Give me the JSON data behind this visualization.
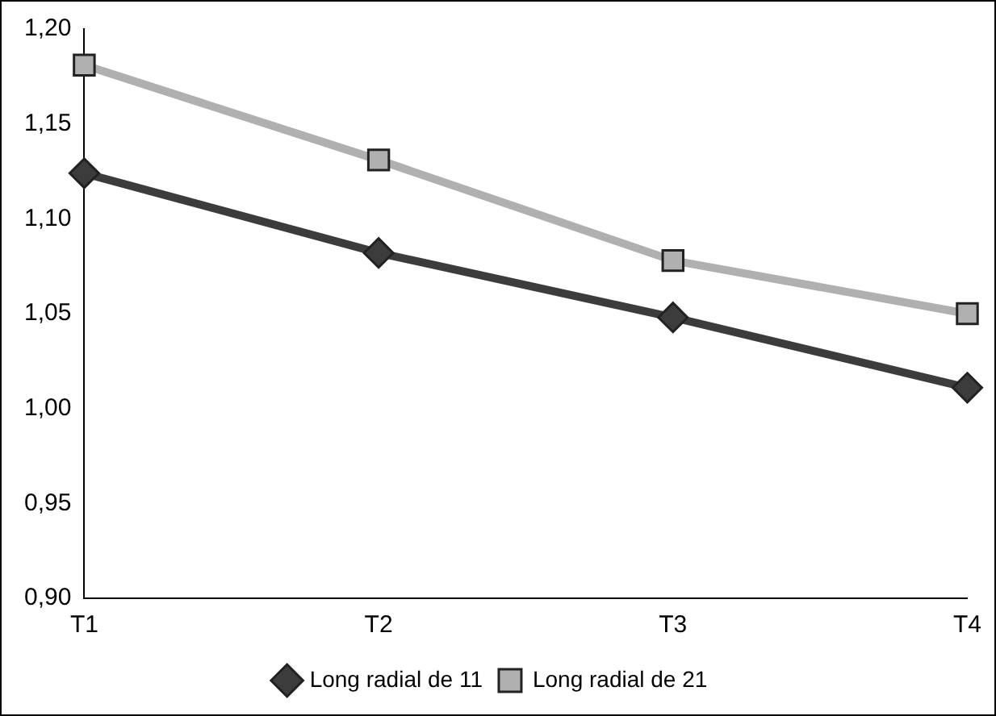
{
  "chart_data": {
    "type": "line",
    "categories": [
      "T1",
      "T2",
      "T3",
      "T4"
    ],
    "series": [
      {
        "name": "Long radial de 11",
        "color": "#3c3c3c",
        "marker": "diamond",
        "values": [
          1.124,
          1.082,
          1.048,
          1.011
        ]
      },
      {
        "name": "Long radial de 21",
        "color": "#b0b0b0",
        "marker": "square",
        "values": [
          1.181,
          1.131,
          1.078,
          1.05
        ]
      }
    ],
    "ylim": [
      0.9,
      1.2
    ],
    "yticks": [
      {
        "value": 0.9,
        "label": "0,90"
      },
      {
        "value": 0.95,
        "label": "0,95"
      },
      {
        "value": 1.0,
        "label": "1,00"
      },
      {
        "value": 1.05,
        "label": "1,05"
      },
      {
        "value": 1.1,
        "label": "1,10"
      },
      {
        "value": 1.15,
        "label": "1,15"
      },
      {
        "value": 1.2,
        "label": "1,20"
      }
    ],
    "grid": false,
    "legend": "bottom",
    "line_style": "solid"
  }
}
